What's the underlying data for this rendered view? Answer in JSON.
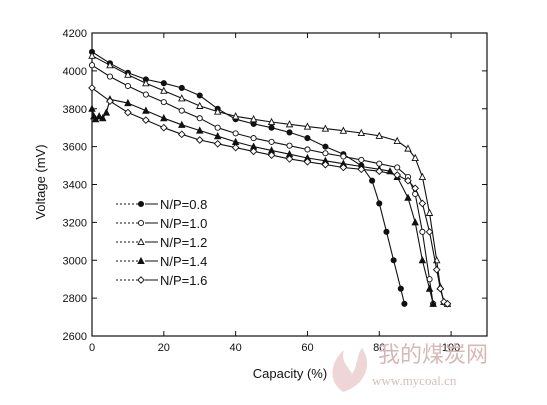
{
  "chart_data": {
    "type": "line",
    "title": "",
    "xlabel": "Capacity (%)",
    "ylabel": "Voltage (mV)",
    "xlim": [
      0,
      110
    ],
    "ylim": [
      2600,
      4200
    ],
    "x_ticks": [
      "0",
      "20",
      "40",
      "60",
      "80",
      "100"
    ],
    "y_ticks": [
      "2600",
      "2800",
      "3000",
      "3200",
      "3400",
      "3600",
      "3800",
      "4000",
      "4200"
    ],
    "grid": false,
    "legend_position": "lower-left",
    "series": [
      {
        "name": "N/P=0.8",
        "marker": "filled-circle",
        "x": [
          0,
          5,
          10,
          15,
          20,
          25,
          30,
          35,
          40,
          45,
          50,
          55,
          60,
          65,
          70,
          75,
          78,
          80,
          82,
          84,
          86,
          87
        ],
        "y": [
          4100,
          4040,
          3990,
          3955,
          3935,
          3910,
          3870,
          3800,
          3745,
          3720,
          3700,
          3675,
          3645,
          3600,
          3560,
          3500,
          3420,
          3300,
          3150,
          3000,
          2850,
          2770
        ]
      },
      {
        "name": "N/P=1.0",
        "marker": "open-circle",
        "x": [
          0,
          5,
          10,
          15,
          20,
          25,
          30,
          35,
          40,
          45,
          50,
          55,
          60,
          65,
          70,
          75,
          80,
          85,
          88,
          90,
          92,
          94,
          95
        ],
        "y": [
          4030,
          3970,
          3920,
          3875,
          3835,
          3790,
          3750,
          3700,
          3670,
          3645,
          3625,
          3605,
          3585,
          3565,
          3548,
          3530,
          3510,
          3490,
          3440,
          3350,
          3150,
          2900,
          2770
        ]
      },
      {
        "name": "N/P=1.2",
        "marker": "open-triangle",
        "x": [
          0,
          5,
          10,
          15,
          20,
          25,
          30,
          35,
          40,
          45,
          50,
          55,
          60,
          65,
          70,
          75,
          80,
          85,
          88,
          90,
          92,
          94,
          96,
          97,
          98,
          99
        ],
        "y": [
          4080,
          4030,
          3980,
          3935,
          3895,
          3855,
          3815,
          3785,
          3760,
          3745,
          3730,
          3718,
          3706,
          3695,
          3684,
          3672,
          3657,
          3630,
          3590,
          3540,
          3440,
          3250,
          3000,
          2860,
          2780,
          2770
        ]
      },
      {
        "name": "N/P=1.4",
        "marker": "filled-triangle",
        "x": [
          0,
          0.5,
          1,
          2,
          3,
          4,
          5,
          10,
          15,
          20,
          25,
          30,
          35,
          40,
          45,
          50,
          55,
          60,
          65,
          70,
          75,
          80,
          83,
          85,
          88,
          90,
          92,
          94,
          95
        ],
        "y": [
          3800,
          3760,
          3745,
          3760,
          3750,
          3780,
          3850,
          3830,
          3790,
          3750,
          3715,
          3685,
          3655,
          3625,
          3600,
          3580,
          3560,
          3540,
          3525,
          3510,
          3495,
          3480,
          3470,
          3440,
          3330,
          3200,
          3000,
          2850,
          2770
        ]
      },
      {
        "name": "N/P=1.6",
        "marker": "open-diamond",
        "x": [
          0,
          5,
          10,
          15,
          20,
          25,
          30,
          35,
          40,
          45,
          50,
          55,
          60,
          65,
          70,
          75,
          80,
          85,
          88,
          90,
          92,
          94,
          96,
          97,
          98,
          99
        ],
        "y": [
          3910,
          3840,
          3780,
          3740,
          3700,
          3665,
          3635,
          3615,
          3595,
          3575,
          3555,
          3535,
          3520,
          3505,
          3490,
          3480,
          3470,
          3450,
          3420,
          3380,
          3300,
          3150,
          2950,
          2850,
          2780,
          2770
        ]
      }
    ]
  },
  "watermark": {
    "text": "我的煤炭网",
    "url": "www.mycoal.cn"
  }
}
